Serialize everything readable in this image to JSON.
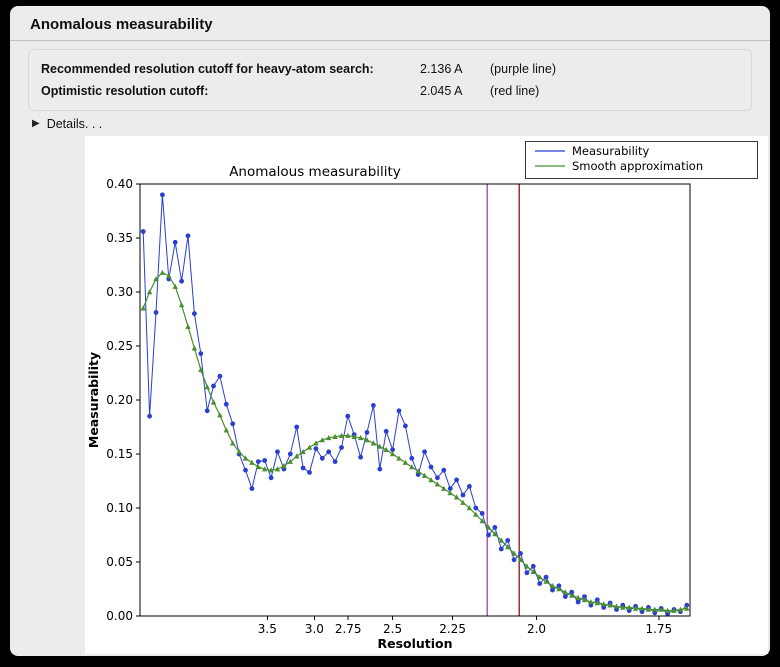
{
  "window": {
    "title": "Anomalous measurability"
  },
  "icons": {
    "disclosure": "▶"
  },
  "info": {
    "rows": [
      {
        "label": "Recommended resolution cutoff for heavy-atom search:",
        "value": "2.136 A",
        "note": "(purple line)"
      },
      {
        "label": "Optimistic resolution cutoff:",
        "value": "2.045 A",
        "note": "(red line)"
      }
    ]
  },
  "details_label": "Details. . .",
  "chart_data": {
    "type": "line",
    "title": "Anomalous measurability",
    "xlabel": "Resolution",
    "ylabel": "Measurability",
    "x_axis_note": "x axis linear in 1/d^2 (inverse resolution squared); tick labels show resolution d in Angstrom",
    "xlim": [
      0.002,
      0.346
    ],
    "ylim": [
      0.0,
      0.4
    ],
    "grid": false,
    "legend_position": "top-right",
    "xticks": [
      {
        "value": 0.0816,
        "label": "3.5"
      },
      {
        "value": 0.1111,
        "label": "3.0"
      },
      {
        "value": 0.1322,
        "label": "2.75"
      },
      {
        "value": 0.16,
        "label": "2.5"
      },
      {
        "value": 0.1975,
        "label": "2.25"
      },
      {
        "value": 0.25,
        "label": "2.0"
      },
      {
        "value": 0.3265,
        "label": "1.75"
      }
    ],
    "yticks": [
      {
        "value": 0.0,
        "label": "0.00"
      },
      {
        "value": 0.05,
        "label": "0.05"
      },
      {
        "value": 0.1,
        "label": "0.10"
      },
      {
        "value": 0.15,
        "label": "0.15"
      },
      {
        "value": 0.2,
        "label": "0.20"
      },
      {
        "value": 0.25,
        "label": "0.25"
      },
      {
        "value": 0.3,
        "label": "0.30"
      },
      {
        "value": 0.35,
        "label": "0.35"
      },
      {
        "value": 0.4,
        "label": "0.40"
      }
    ],
    "x": [
      0.004,
      0.008,
      0.012,
      0.016,
      0.02,
      0.024,
      0.028,
      0.032,
      0.036,
      0.04,
      0.044,
      0.048,
      0.052,
      0.056,
      0.06,
      0.064,
      0.068,
      0.072,
      0.076,
      0.08,
      0.084,
      0.088,
      0.092,
      0.096,
      0.1,
      0.104,
      0.108,
      0.112,
      0.116,
      0.12,
      0.124,
      0.128,
      0.132,
      0.136,
      0.14,
      0.144,
      0.148,
      0.152,
      0.156,
      0.16,
      0.164,
      0.168,
      0.172,
      0.176,
      0.18,
      0.184,
      0.188,
      0.192,
      0.196,
      0.2,
      0.204,
      0.208,
      0.212,
      0.216,
      0.22,
      0.224,
      0.228,
      0.232,
      0.236,
      0.24,
      0.244,
      0.248,
      0.252,
      0.256,
      0.26,
      0.264,
      0.268,
      0.272,
      0.276,
      0.28,
      0.284,
      0.288,
      0.292,
      0.296,
      0.3,
      0.304,
      0.308,
      0.312,
      0.316,
      0.32,
      0.324,
      0.328,
      0.332,
      0.336,
      0.34,
      0.344
    ],
    "series": [
      {
        "name": "Measurability",
        "color": "#2a3fd0",
        "marker": "circle",
        "values": [
          0.356,
          0.185,
          0.281,
          0.39,
          0.312,
          0.346,
          0.31,
          0.352,
          0.28,
          0.243,
          0.19,
          0.213,
          0.222,
          0.196,
          0.178,
          0.15,
          0.135,
          0.118,
          0.143,
          0.144,
          0.128,
          0.152,
          0.136,
          0.15,
          0.175,
          0.137,
          0.133,
          0.155,
          0.146,
          0.152,
          0.143,
          0.156,
          0.185,
          0.168,
          0.147,
          0.17,
          0.195,
          0.136,
          0.171,
          0.154,
          0.19,
          0.176,
          0.146,
          0.131,
          0.152,
          0.138,
          0.128,
          0.135,
          0.118,
          0.126,
          0.112,
          0.12,
          0.1,
          0.095,
          0.075,
          0.082,
          0.062,
          0.07,
          0.052,
          0.058,
          0.04,
          0.046,
          0.03,
          0.036,
          0.024,
          0.028,
          0.018,
          0.022,
          0.013,
          0.018,
          0.01,
          0.015,
          0.008,
          0.012,
          0.006,
          0.01,
          0.005,
          0.009,
          0.004,
          0.008,
          0.003,
          0.007,
          0.002,
          0.006,
          0.004,
          0.01
        ]
      },
      {
        "name": "Smooth approximation",
        "color": "#4a8f2e",
        "marker": "triangle",
        "values": [
          0.285,
          0.3,
          0.312,
          0.318,
          0.315,
          0.305,
          0.288,
          0.268,
          0.248,
          0.228,
          0.212,
          0.198,
          0.186,
          0.172,
          0.16,
          0.152,
          0.146,
          0.142,
          0.138,
          0.136,
          0.135,
          0.136,
          0.139,
          0.143,
          0.148,
          0.152,
          0.156,
          0.16,
          0.163,
          0.165,
          0.166,
          0.167,
          0.167,
          0.166,
          0.165,
          0.163,
          0.16,
          0.157,
          0.154,
          0.15,
          0.146,
          0.142,
          0.138,
          0.134,
          0.13,
          0.126,
          0.122,
          0.118,
          0.114,
          0.11,
          0.105,
          0.1,
          0.094,
          0.088,
          0.082,
          0.076,
          0.07,
          0.064,
          0.058,
          0.052,
          0.046,
          0.041,
          0.036,
          0.032,
          0.028,
          0.025,
          0.022,
          0.019,
          0.017,
          0.015,
          0.013,
          0.012,
          0.011,
          0.01,
          0.009,
          0.008,
          0.008,
          0.007,
          0.007,
          0.006,
          0.006,
          0.006,
          0.005,
          0.005,
          0.006,
          0.007
        ]
      }
    ],
    "vlines": [
      {
        "name": "purple-cutoff-line",
        "x": 0.2192,
        "resolution": "2.136 A",
        "color": "#b458b4"
      },
      {
        "name": "red-cutoff-line",
        "x": 0.2391,
        "resolution": "2.045 A",
        "color": "#993333"
      }
    ]
  }
}
